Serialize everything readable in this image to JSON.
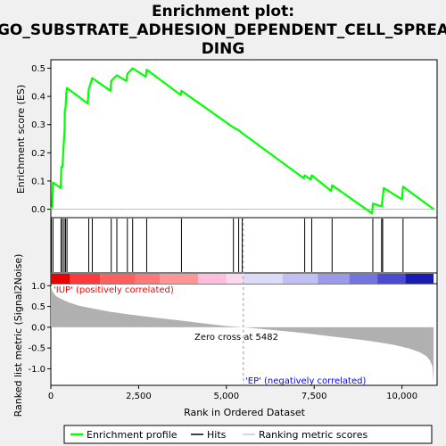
{
  "chart_data": {
    "type": "line",
    "title_lines": [
      "Enrichment plot:",
      "GO_SUBSTRATE_ADHESION_DEPENDENT_CELL_SPREA",
      "DING"
    ],
    "xlabel": "Rank in Ordered Dataset",
    "ylabel_top": "Enrichment score (ES)",
    "ylabel_bottom": "Ranked list metric (Signal2Noise)",
    "x_range": [
      0,
      11000
    ],
    "x_ticks": [
      0,
      2500,
      5000,
      7500,
      10000
    ],
    "x_tick_labels": [
      "0",
      "2,500",
      "5,000",
      "7,500",
      "10,000"
    ],
    "es_range": [
      -0.03,
      0.53
    ],
    "es_ticks": [
      0.0,
      0.1,
      0.2,
      0.3,
      0.4,
      0.5
    ],
    "es_tick_labels": [
      "0.0",
      "0.1",
      "0.2",
      "0.3",
      "0.4",
      "0.5"
    ],
    "metric_range": [
      -1.4,
      1.05
    ],
    "metric_ticks": [
      1.0,
      0.5,
      0.0,
      -0.5,
      -1.0
    ],
    "metric_tick_labels": [
      "1.0",
      "0.5",
      "0.0",
      "-0.5",
      "-1.0"
    ],
    "enrichment_profile": {
      "x": [
        0,
        40,
        60,
        280,
        300,
        330,
        360,
        390,
        400,
        420,
        440,
        460,
        1050,
        1080,
        1180,
        1700,
        1720,
        1880,
        2150,
        2180,
        2330,
        2700,
        2730,
        3700,
        3720,
        5200,
        5350,
        5450,
        7200,
        7230,
        7400,
        7430,
        7980,
        8010,
        9150,
        9170,
        9420,
        9450,
        9480,
        10000,
        10030,
        10900
      ],
      "y": [
        0.0,
        0.01,
        0.095,
        0.075,
        0.15,
        0.15,
        0.22,
        0.28,
        0.35,
        0.36,
        0.41,
        0.43,
        0.375,
        0.425,
        0.465,
        0.42,
        0.455,
        0.475,
        0.455,
        0.48,
        0.5,
        0.47,
        0.495,
        0.405,
        0.42,
        0.29,
        0.28,
        0.27,
        0.11,
        0.12,
        0.105,
        0.12,
        0.065,
        0.085,
        -0.015,
        0.02,
        0.01,
        0.04,
        0.075,
        0.035,
        0.08,
        0.0
      ]
    },
    "hits": [
      15,
      60,
      290,
      330,
      380,
      420,
      460,
      1080,
      1180,
      1720,
      1880,
      2180,
      2330,
      2730,
      3720,
      5200,
      5350,
      5450,
      7230,
      7430,
      8010,
      9170,
      9420,
      9450,
      10030
    ],
    "metric": {
      "x": [
        0,
        50,
        150,
        300,
        500,
        800,
        1200,
        1700,
        2300,
        3000,
        3700,
        4400,
        5000,
        5482,
        6000,
        6600,
        7200,
        7800,
        8400,
        8900,
        9400,
        9800,
        10200,
        10500,
        10700,
        10800,
        10870,
        10900
      ],
      "y": [
        1.0,
        0.85,
        0.75,
        0.68,
        0.6,
        0.52,
        0.45,
        0.37,
        0.3,
        0.23,
        0.16,
        0.09,
        0.03,
        0.0,
        -0.04,
        -0.09,
        -0.14,
        -0.2,
        -0.26,
        -0.31,
        -0.37,
        -0.43,
        -0.51,
        -0.6,
        -0.7,
        -0.8,
        -0.95,
        -1.35
      ]
    },
    "zero_cross": 5482,
    "zero_cross_label": "Zero cross at 5482",
    "pos_label": "'IUP' (positively correlated)",
    "neg_label": "'EP' (negatively correlated)",
    "colors": {
      "profile": "#00ff00",
      "hits": "#000000",
      "metric_fill": "#b0b0b0",
      "pos_text": "#ff0000",
      "neg_text": "#0000ff"
    },
    "heatbar": [
      {
        "x0": 0,
        "x1": 550,
        "color": "#ea0000"
      },
      {
        "x0": 550,
        "x1": 1400,
        "color": "#ff3a3a"
      },
      {
        "x0": 1400,
        "x1": 2400,
        "color": "#ff5f5f"
      },
      {
        "x0": 2400,
        "x1": 3100,
        "color": "#ff7878"
      },
      {
        "x0": 3100,
        "x1": 4200,
        "color": "#ff9696"
      },
      {
        "x0": 4200,
        "x1": 5000,
        "color": "#ffbede"
      },
      {
        "x0": 5000,
        "x1": 5480,
        "color": "#ffd8ee"
      },
      {
        "x0": 5480,
        "x1": 6600,
        "color": "#dcdcf8"
      },
      {
        "x0": 6600,
        "x1": 7600,
        "color": "#c0c0f4"
      },
      {
        "x0": 7600,
        "x1": 8500,
        "color": "#9a9ae8"
      },
      {
        "x0": 8500,
        "x1": 9300,
        "color": "#7474e0"
      },
      {
        "x0": 9300,
        "x1": 10100,
        "color": "#4b4bd4"
      },
      {
        "x0": 10100,
        "x1": 10900,
        "color": "#1a1ab4"
      }
    ],
    "legend": [
      {
        "key": "profile",
        "label": "Enrichment profile"
      },
      {
        "key": "hits",
        "label": "Hits"
      },
      {
        "key": "metric",
        "label": "Ranking metric scores"
      }
    ]
  }
}
